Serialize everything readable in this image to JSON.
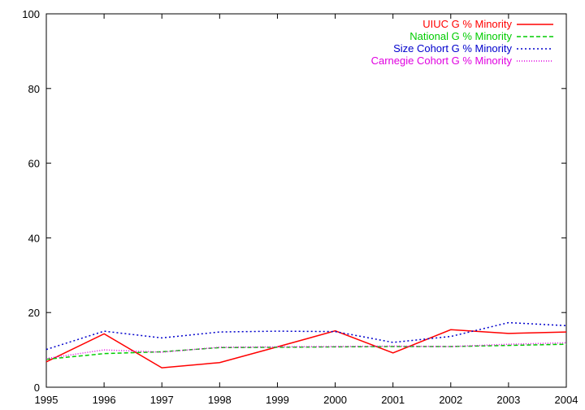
{
  "chart_data": {
    "type": "line",
    "x": [
      1995,
      1996,
      1997,
      1998,
      1999,
      2000,
      2001,
      2002,
      2003,
      2004
    ],
    "xlim": [
      1995,
      2004
    ],
    "ylim": [
      0,
      100
    ],
    "xticks": [
      "1995",
      "1996",
      "1997",
      "1998",
      "1999",
      "2000",
      "2001",
      "2002",
      "2003",
      "2004"
    ],
    "yticks": [
      "0",
      "20",
      "40",
      "60",
      "80",
      "100"
    ],
    "grid": false,
    "legend_position": "top-right",
    "series": [
      {
        "name": "UIUC G % Minority",
        "color": "#ff0000",
        "dash": "solid",
        "values": [
          6.8,
          14.3,
          5.2,
          6.6,
          10.8,
          15.1,
          9.2,
          15.4,
          14.4,
          14.8
        ]
      },
      {
        "name": "National G % Minority",
        "color": "#00cc00",
        "dash": "dashed",
        "values": [
          7.5,
          9.0,
          9.5,
          10.6,
          10.7,
          10.8,
          10.9,
          10.9,
          11.2,
          11.5
        ]
      },
      {
        "name": "Size Cohort G % Minority",
        "color": "#0000cc",
        "dash": "dotted",
        "values": [
          10.1,
          15.0,
          13.2,
          14.8,
          15.0,
          14.9,
          12.0,
          13.6,
          17.3,
          16.5
        ]
      },
      {
        "name": "Carnegie Cohort G % Minority",
        "color": "#e000e0",
        "dash": "finedotted",
        "values": [
          7.7,
          10.0,
          9.4,
          10.7,
          10.8,
          10.9,
          11.0,
          10.9,
          11.5,
          11.9
        ]
      }
    ]
  }
}
